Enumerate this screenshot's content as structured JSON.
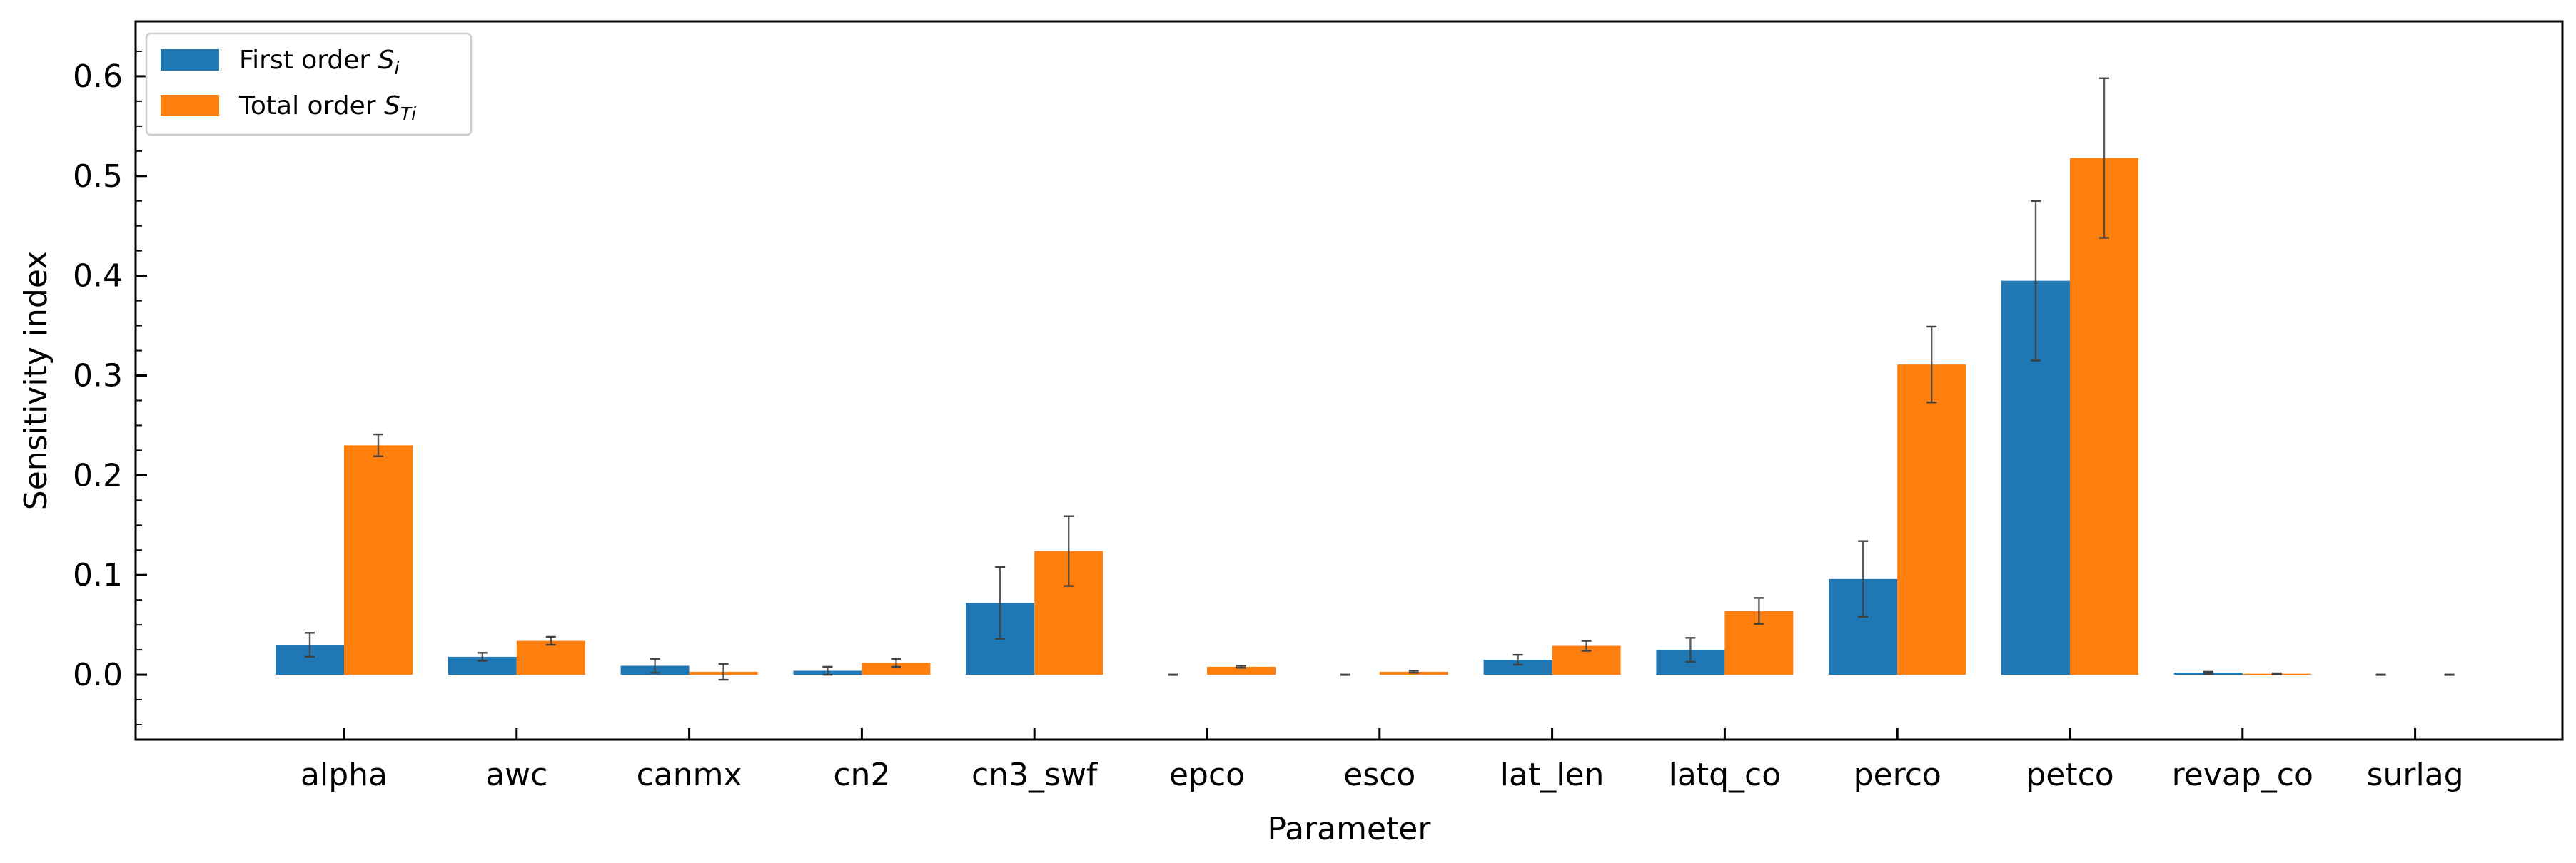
{
  "chart_data": {
    "type": "bar",
    "xlabel": "Parameter",
    "ylabel": "Sensitivity index",
    "ylim": [
      -0.065,
      0.655
    ],
    "yticks": [
      "0.0",
      "0.1",
      "0.2",
      "0.3",
      "0.4",
      "0.5",
      "0.6"
    ],
    "categories": [
      "alpha",
      "awc",
      "canmx",
      "cn2",
      "cn3_swf",
      "epco",
      "esco",
      "lat_len",
      "latq_co",
      "perco",
      "petco",
      "revap_co",
      "surlag"
    ],
    "series": [
      {
        "name": "First order S_i",
        "color": "#1f77b4",
        "values": [
          0.03,
          0.018,
          0.009,
          0.004,
          0.072,
          0.0,
          0.0,
          0.015,
          0.025,
          0.096,
          0.395,
          0.002,
          0.0
        ],
        "errors": [
          0.012,
          0.004,
          0.007,
          0.004,
          0.036,
          0.0,
          0.0,
          0.005,
          0.012,
          0.038,
          0.08,
          0.001,
          0.0
        ]
      },
      {
        "name": "Total order S_Ti",
        "color": "#ff7f0e",
        "values": [
          0.23,
          0.034,
          0.003,
          0.012,
          0.124,
          0.008,
          0.003,
          0.029,
          0.064,
          0.311,
          0.518,
          0.001,
          0.0
        ],
        "errors": [
          0.011,
          0.004,
          0.008,
          0.004,
          0.035,
          0.001,
          0.001,
          0.005,
          0.013,
          0.038,
          0.08,
          0.0005,
          0.0
        ]
      }
    ],
    "legend": {
      "position": "top-left",
      "entries": [
        {
          "base": "First order ",
          "sym": "S",
          "sub": "i"
        },
        {
          "base": "Total order ",
          "sym": "S",
          "sub": "Ti"
        }
      ]
    },
    "grid": false
  }
}
